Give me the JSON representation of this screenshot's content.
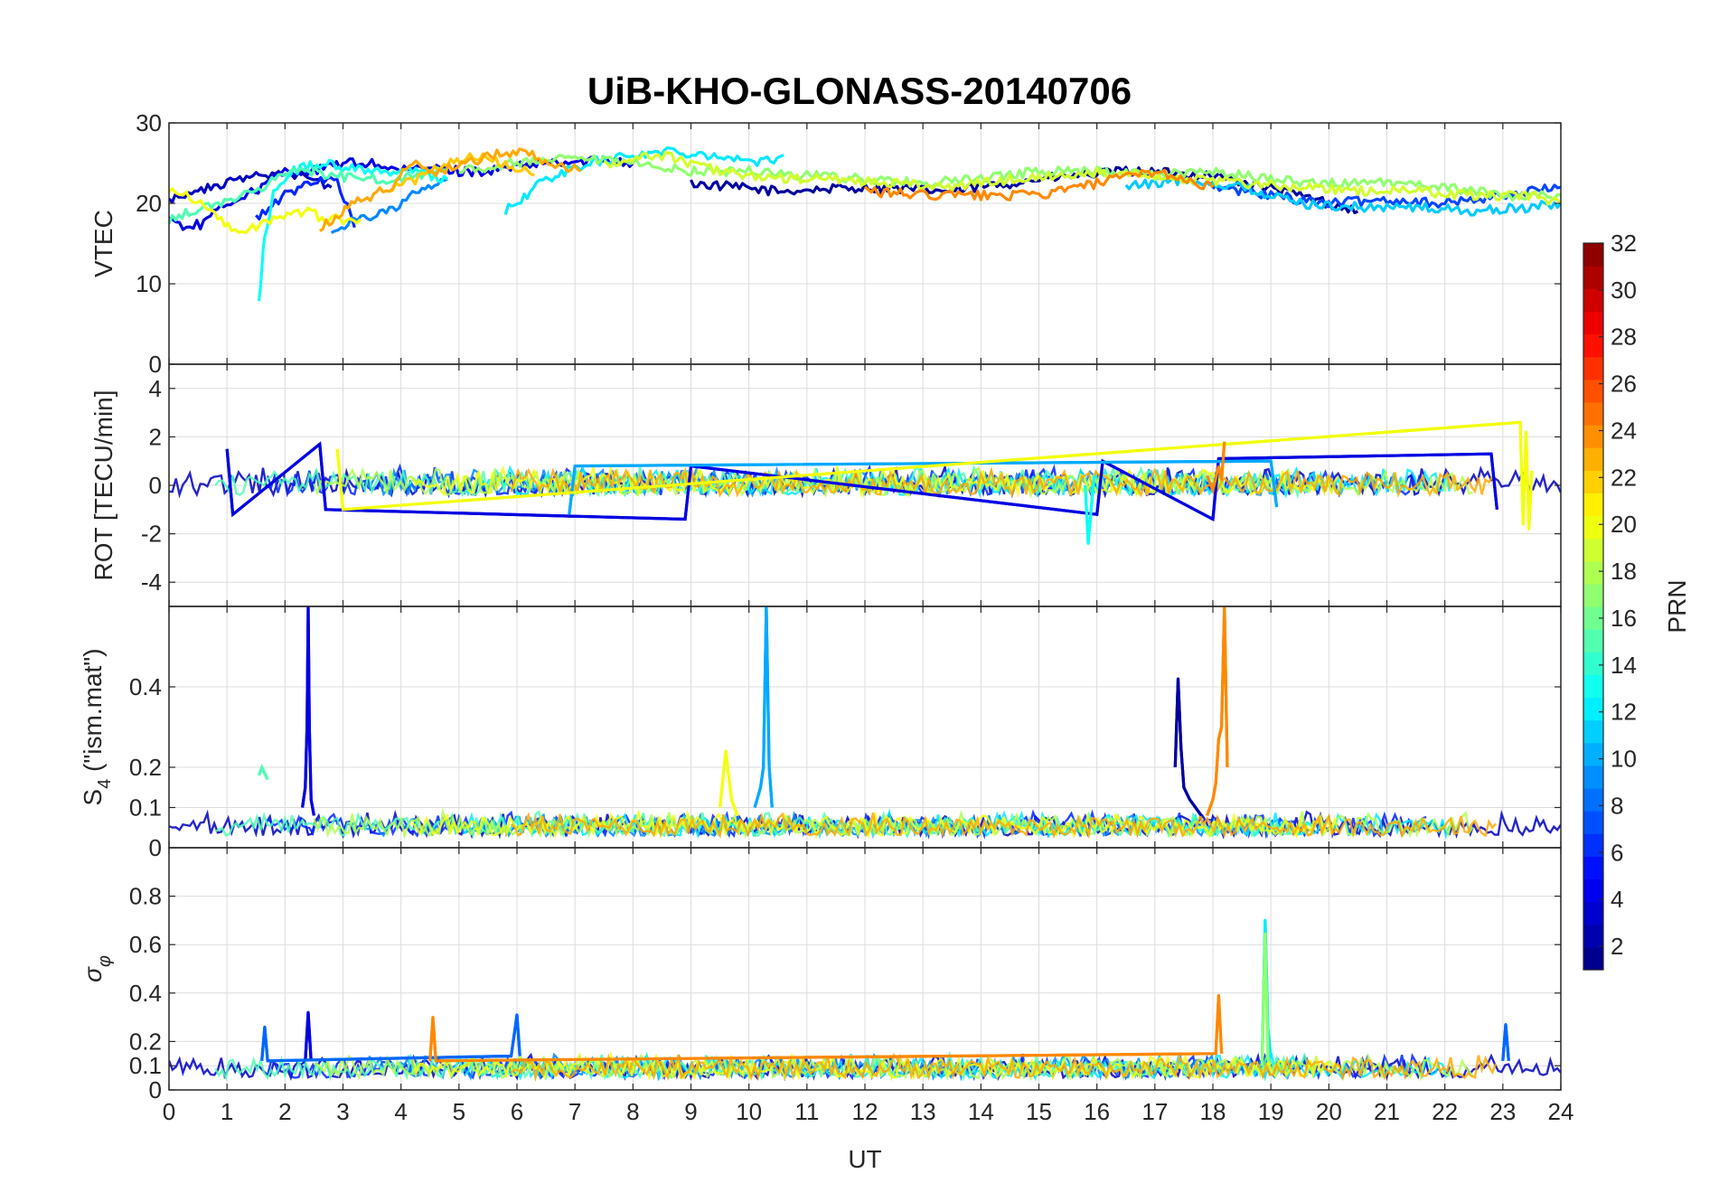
{
  "chart_data": {
    "type": "line",
    "title": "UiB-KHO-GLONASS-20140706",
    "xlabel": "UT",
    "xlim": [
      0,
      24
    ],
    "xticks": [
      "0",
      "1",
      "2",
      "3",
      "4",
      "5",
      "6",
      "7",
      "8",
      "9",
      "10",
      "11",
      "12",
      "13",
      "14",
      "15",
      "16",
      "17",
      "18",
      "19",
      "20",
      "21",
      "22",
      "23",
      "24"
    ],
    "grid": true,
    "panels": [
      {
        "id": "vtec",
        "ylabel": "VTEC",
        "ylim": [
          0,
          30
        ],
        "yticks": [
          0,
          10,
          20,
          30
        ],
        "ytick_labels": [
          "0",
          "10",
          "20",
          "30"
        ],
        "series": [
          {
            "prn": 2,
            "x": [
              9.0,
              10.5,
              12,
              13.5,
              15,
              16.5,
              18,
              19.5,
              20.5
            ],
            "y": [
              22.5,
              21.5,
              22,
              21.5,
              23,
              24,
              23.5,
              21,
              19
            ]
          },
          {
            "prn": 4,
            "x": [
              0,
              0.3,
              0.6,
              1,
              1.3,
              1.6,
              2,
              2.5,
              3,
              3.5,
              4,
              4.5,
              5,
              5.5,
              6,
              6.5,
              7,
              7.5,
              8
            ],
            "y": [
              18,
              17,
              17.5,
              20,
              21,
              22,
              24,
              24,
              25,
              25,
              24,
              24.5,
              24,
              24,
              24.5,
              25,
              25,
              25.5,
              25
            ]
          },
          {
            "prn": 3,
            "x": [
              0,
              0.5,
              1,
              1.5,
              2,
              2.5,
              2.8
            ],
            "y": [
              20.5,
              21.5,
              22.5,
              23.5,
              24,
              23,
              22
            ]
          },
          {
            "prn": 6,
            "x": [
              1.5,
              2,
              2.5,
              2.9,
              3.2
            ],
            "y": [
              18,
              21,
              23,
              23,
              17
            ]
          },
          {
            "prn": 7,
            "x": [
              18,
              19,
              20,
              21,
              22,
              23,
              24
            ],
            "y": [
              22,
              21,
              20,
              20.5,
              20,
              21,
              22
            ]
          },
          {
            "prn": 9,
            "x": [
              2.8,
              3.2,
              3.8,
              4.2,
              4.8
            ],
            "y": [
              16.5,
              18,
              19,
              21,
              23
            ]
          },
          {
            "prn": 11,
            "x": [
              16.5,
              17.5,
              18.5,
              19.5,
              20.5,
              21.5,
              22.5,
              23.5,
              24
            ],
            "y": [
              22,
              23,
              22,
              20,
              19.5,
              19.5,
              19,
              19.5,
              20
            ]
          },
          {
            "prn": 12,
            "x": [
              5.8,
              6.5,
              7.2,
              8,
              8.7,
              9.4,
              10.2,
              10.6
            ],
            "y": [
              19,
              23,
              25,
              26,
              26.5,
              26,
              25,
              26
            ]
          },
          {
            "prn": 13,
            "x": [
              1.55,
              1.65,
              1.8,
              2.1,
              2.6,
              3.1,
              3.6,
              4.2,
              4.8
            ],
            "y": [
              8,
              16,
              21,
              24,
              25,
              24.5,
              24,
              24,
              23
            ]
          },
          {
            "prn": 15,
            "x": [
              0,
              0.4,
              0.9,
              1.3,
              1.6,
              2,
              2.4,
              2.8,
              3.3,
              3.8,
              4.3,
              4.8
            ],
            "y": [
              18,
              19,
              20,
              21,
              22,
              24,
              24,
              23.5,
              23,
              23,
              23.5,
              24
            ]
          },
          {
            "prn": 17,
            "x": [
              5,
              6,
              7,
              8,
              9,
              10,
              11,
              12,
              13,
              14,
              15,
              16,
              17,
              18,
              19,
              20,
              21,
              22,
              23,
              24
            ],
            "y": [
              24,
              25,
              25.5,
              25,
              24,
              24,
              23.5,
              23,
              22.5,
              23,
              24,
              24,
              23.5,
              24,
              23,
              22.5,
              22.5,
              22,
              21,
              21
            ]
          },
          {
            "prn": 19,
            "x": [
              7.5,
              8.5,
              9.5,
              10.5,
              11.5,
              12.5,
              13.5,
              14.5,
              15.5,
              16.5,
              17.5,
              18.5,
              19.5,
              20.5,
              21.5,
              22.5,
              23.5,
              24
            ],
            "y": [
              25,
              26,
              24,
              23,
              23,
              22.5,
              22,
              23,
              23.5,
              24,
              23,
              22.5,
              22,
              21.5,
              21.5,
              21,
              21,
              20
            ]
          },
          {
            "prn": 20,
            "x": [
              0,
              0.3,
              0.6,
              0.9,
              1.2,
              1.5,
              1.8,
              2.1,
              2.4,
              2.7,
              3.0,
              3.3
            ],
            "y": [
              22,
              21,
              20,
              18,
              16.5,
              17,
              18,
              19,
              19,
              18,
              18,
              18
            ]
          },
          {
            "prn": 22,
            "x": [
              3.8,
              4.3,
              4.8,
              5.3,
              5.8,
              6.3
            ],
            "y": [
              22,
              23,
              25,
              26,
              25,
              23.5
            ]
          },
          {
            "prn": 23,
            "x": [
              2.6,
              3.2,
              3.8,
              4.2,
              4.6,
              5.1,
              5.6,
              6.1,
              6.6,
              7.1
            ],
            "y": [
              17,
              20,
              22,
              25,
              24,
              25,
              26,
              26.5,
              25,
              24
            ]
          },
          {
            "prn": 24,
            "x": [
              12,
              13,
              14,
              15,
              16,
              17,
              17.5,
              18
            ],
            "y": [
              21.5,
              21,
              21,
              21,
              22.5,
              24,
              23,
              22
            ]
          }
        ]
      },
      {
        "id": "rot",
        "ylabel": "ROT [TECU/min]",
        "ylim": [
          -5,
          5
        ],
        "yticks": [
          -4,
          -2,
          0,
          2,
          4
        ],
        "ytick_labels": [
          "-4",
          "-2",
          "0",
          "2",
          "4"
        ],
        "series": [
          {
            "prn": 4,
            "x": [
              1.0,
              1.1,
              2.6,
              2.7,
              8.9,
              9.0,
              16.0,
              16.1,
              18.0,
              18.1,
              22.8,
              22.9
            ],
            "y": [
              1.5,
              -1.2,
              1.7,
              -1.0,
              -1.4,
              0.8,
              -1.2,
              1.0,
              -1.4,
              1.1,
              1.3,
              -1.0
            ]
          },
          {
            "prn": 10,
            "x": [
              6.9,
              7.0,
              19.0,
              19.1
            ],
            "y": [
              -1.2,
              0.8,
              1.0,
              -0.9
            ]
          },
          {
            "prn": 13,
            "x": [
              15.8,
              15.85,
              15.9,
              15.95
            ],
            "y": [
              0,
              -2.4,
              -1.0,
              0.4
            ]
          },
          {
            "prn": 20,
            "x": [
              2.9,
              3.0,
              23.3,
              23.35,
              23.4,
              23.45,
              23.5
            ],
            "y": [
              1.5,
              -1.0,
              2.6,
              -1.6,
              2.2,
              -1.8,
              0.6
            ]
          },
          {
            "prn": 24,
            "x": [
              17.9,
              18.0,
              18.1,
              18.15,
              18.2
            ],
            "y": [
              0.4,
              -0.2,
              0.8,
              0.2,
              1.8
            ]
          }
        ]
      },
      {
        "id": "s4",
        "ylabel": "S4 (\"ism.mat\")",
        "ylim": [
          0,
          0.6
        ],
        "yticks": [
          0,
          0.1,
          0.2,
          0.4
        ],
        "ytick_labels": [
          "0",
          "0.1",
          "0.2",
          "0.4"
        ],
        "series": [
          {
            "prn": 4,
            "x": [
              2.3,
              2.35,
              2.38,
              2.4,
              2.42,
              2.45,
              2.5
            ],
            "y": [
              0.1,
              0.15,
              0.3,
              0.6,
              0.3,
              0.12,
              0.08
            ]
          },
          {
            "prn": 10,
            "x": [
              10.1,
              10.2,
              10.25,
              10.3,
              10.35,
              10.4
            ],
            "y": [
              0.1,
              0.15,
              0.2,
              0.6,
              0.2,
              0.1
            ]
          },
          {
            "prn": 2,
            "x": [
              17.35,
              17.4,
              17.45,
              17.5,
              17.6,
              17.7,
              17.8
            ],
            "y": [
              0.2,
              0.42,
              0.25,
              0.15,
              0.12,
              0.1,
              0.08
            ]
          },
          {
            "prn": 24,
            "x": [
              17.9,
              18.0,
              18.05,
              18.1,
              18.15,
              18.2,
              18.25
            ],
            "y": [
              0.08,
              0.12,
              0.16,
              0.27,
              0.3,
              0.6,
              0.2
            ]
          },
          {
            "prn": 20,
            "x": [
              9.5,
              9.6,
              9.7,
              9.8
            ],
            "y": [
              0.1,
              0.24,
              0.12,
              0.08
            ]
          },
          {
            "prn": 15,
            "x": [
              1.55,
              1.6,
              1.7
            ],
            "y": [
              0.18,
              0.2,
              0.17
            ]
          }
        ]
      },
      {
        "id": "sigma",
        "ylabel": "σφ",
        "ylim": [
          0,
          1
        ],
        "yticks": [
          0,
          0.1,
          0.2,
          0.4,
          0.6,
          0.8
        ],
        "ytick_labels": [
          "0",
          "0.1",
          "0.2",
          "0.4",
          "0.6",
          "0.8"
        ],
        "series": [
          {
            "prn": 4,
            "x": [
              2.35,
              2.4,
              2.45
            ],
            "y": [
              0.12,
              0.32,
              0.12
            ]
          },
          {
            "prn": 8,
            "x": [
              1.6,
              1.65,
              1.7,
              5.9,
              6.0,
              6.05
            ],
            "y": [
              0.12,
              0.26,
              0.12,
              0.14,
              0.31,
              0.14
            ]
          },
          {
            "prn": 24,
            "x": [
              4.5,
              4.55,
              4.6,
              18.05,
              18.1,
              18.15
            ],
            "y": [
              0.12,
              0.3,
              0.12,
              0.15,
              0.39,
              0.15
            ]
          },
          {
            "prn": 12,
            "x": [
              18.85,
              18.9,
              18.95,
              19.0
            ],
            "y": [
              0.12,
              0.7,
              0.25,
              0.13
            ]
          },
          {
            "prn": 17,
            "x": [
              18.85,
              18.9,
              18.95
            ],
            "y": [
              0.1,
              0.65,
              0.12
            ]
          },
          {
            "prn": 8,
            "x": [
              23.0,
              23.05,
              23.1
            ],
            "y": [
              0.12,
              0.27,
              0.12
            ]
          }
        ]
      }
    ],
    "colorbar": {
      "label": "PRN",
      "range": [
        1,
        32
      ],
      "ticks": [
        2,
        4,
        6,
        8,
        10,
        12,
        14,
        16,
        18,
        20,
        22,
        24,
        26,
        28,
        30,
        32
      ],
      "colormap": "jet"
    }
  }
}
